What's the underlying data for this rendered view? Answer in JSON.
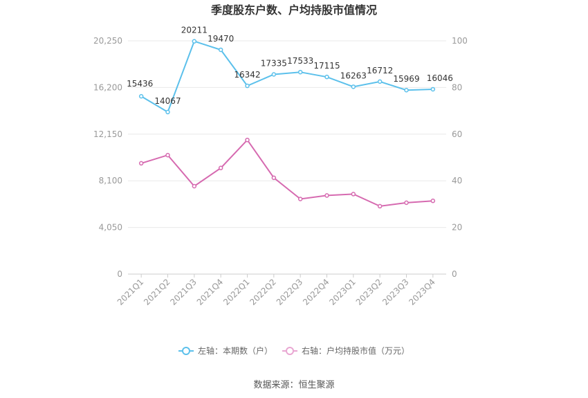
{
  "chart_data": {
    "type": "line",
    "title": "季度股东户数、户均持股市值情况",
    "categories": [
      "2021Q1",
      "2021Q2",
      "2021Q3",
      "2021Q4",
      "2022Q1",
      "2022Q2",
      "2022Q3",
      "2022Q4",
      "2023Q1",
      "2023Q2",
      "2023Q3",
      "2023Q4"
    ],
    "left_axis": {
      "ticks": [
        "0",
        "4,050",
        "8,100",
        "12,150",
        "16,200",
        "20,250"
      ],
      "min": 0,
      "max": 20250
    },
    "right_axis": {
      "ticks": [
        "0",
        "20",
        "40",
        "60",
        "80",
        "100"
      ],
      "min": 0,
      "max": 100
    },
    "grid": true,
    "legend_position": "bottom",
    "series": [
      {
        "name": "左轴：本期数（户）",
        "axis": "left",
        "color": "#5bc0eb",
        "values": [
          15436,
          14067,
          20211,
          19470,
          16342,
          17335,
          17533,
          17115,
          16263,
          16712,
          15969,
          16046
        ],
        "labels": [
          "15436",
          "14067",
          "20211",
          "19470",
          "16342",
          "17335",
          "17533",
          "17115",
          "16263",
          "16712",
          "15969",
          "16046"
        ]
      },
      {
        "name": "右轴：户均持股市值（万元）",
        "axis": "right",
        "color": "#d66ab0",
        "values": [
          47.5,
          51.0,
          37.7,
          45.5,
          57.5,
          41.3,
          32.2,
          33.7,
          34.3,
          29.1,
          30.6,
          31.4
        ]
      }
    ]
  },
  "footer": {
    "source": "数据来源：恒生聚源"
  }
}
